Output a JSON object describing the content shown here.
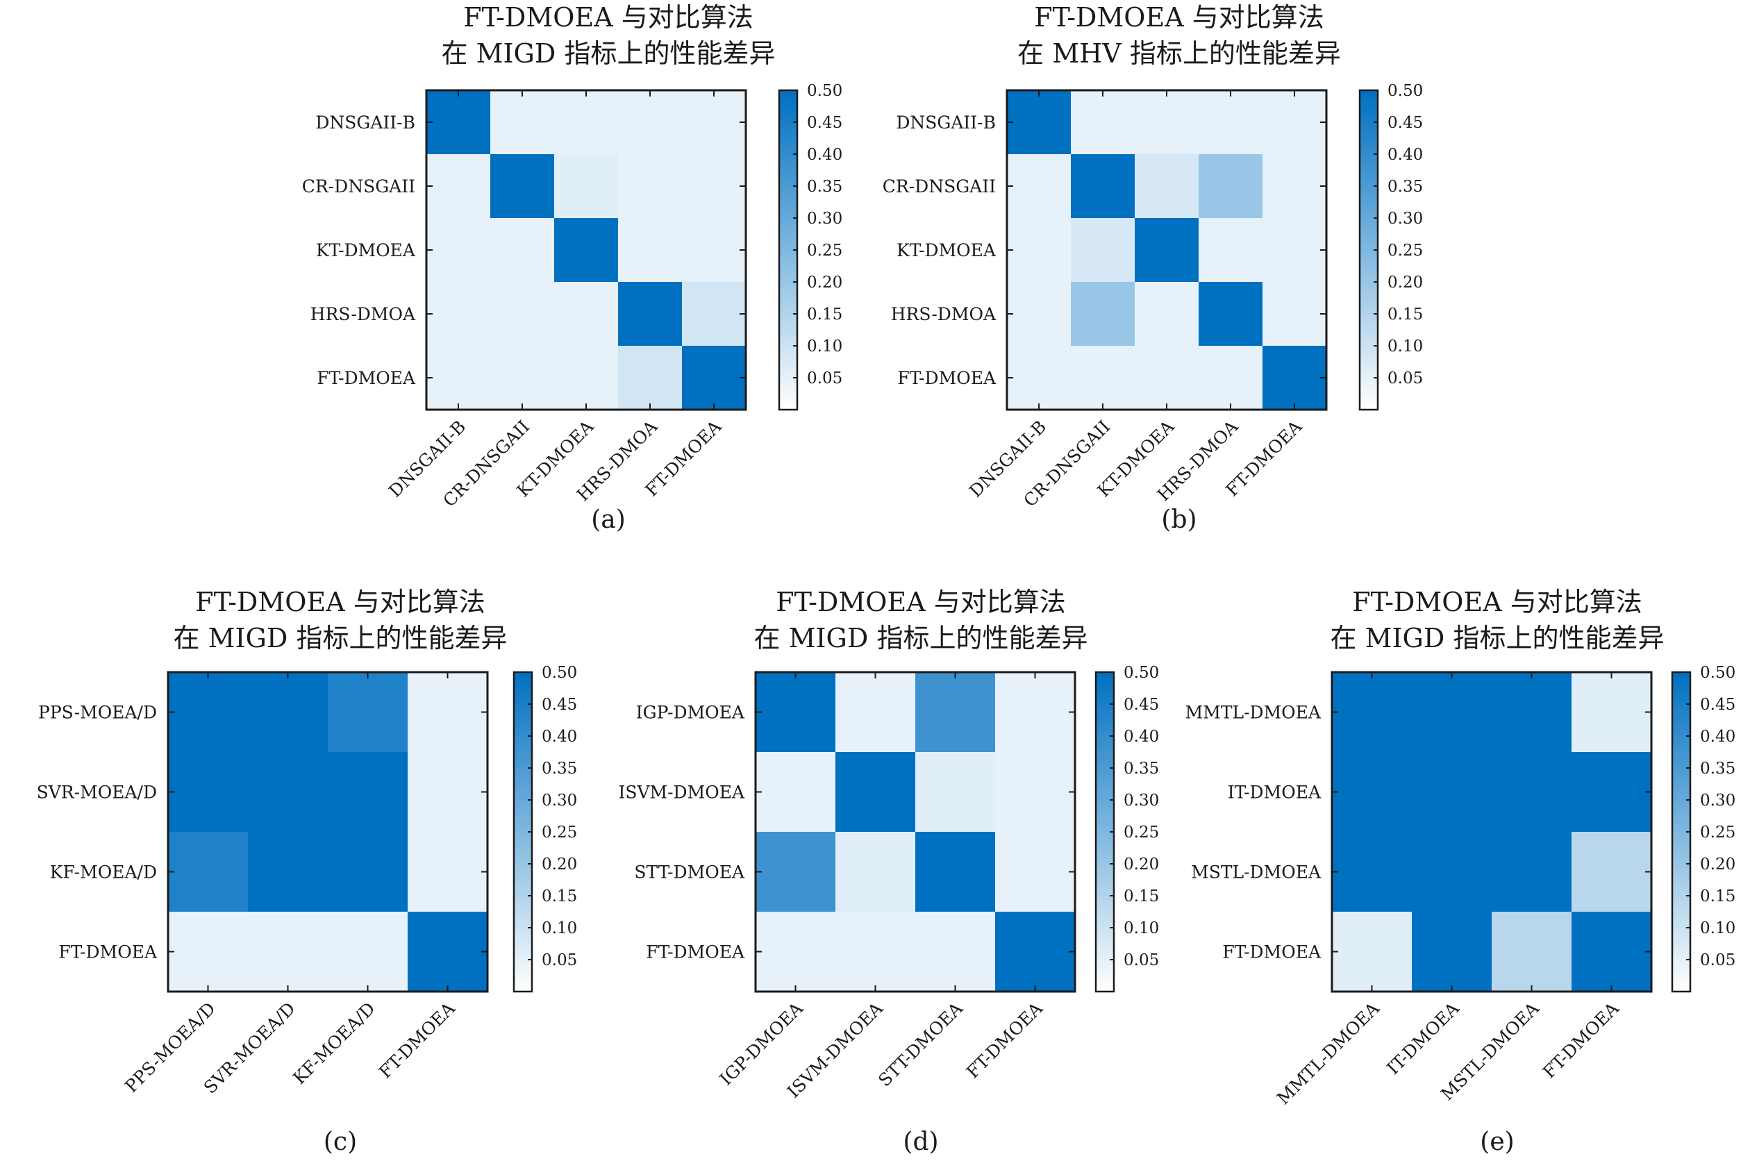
{
  "colormap": {
    "low": "#ffffff",
    "high": "#0070c0"
  },
  "colorbar": {
    "min": 0.0,
    "max": 0.5,
    "ticks": [
      "0.50",
      "0.45",
      "0.40",
      "0.35",
      "0.30",
      "0.25",
      "0.20",
      "0.15",
      "0.10",
      "0.05"
    ]
  },
  "chart_data": [
    {
      "type": "heatmap",
      "caption": "(a)",
      "title": "FT-DMOEA 与对比算法",
      "subtitle": "在 MIGD 指标上的性能差异",
      "labels": [
        "DNSGAII-B",
        "CR-DNSGAII",
        "KT-DMOEA",
        "HRS-DMOA",
        "FT-DMOEA"
      ],
      "values": [
        [
          0.5,
          0.05,
          0.05,
          0.05,
          0.05
        ],
        [
          0.05,
          0.5,
          0.06,
          0.05,
          0.05
        ],
        [
          0.05,
          0.05,
          0.5,
          0.05,
          0.05
        ],
        [
          0.05,
          0.05,
          0.05,
          0.5,
          0.09
        ],
        [
          0.05,
          0.05,
          0.05,
          0.09,
          0.5
        ]
      ]
    },
    {
      "type": "heatmap",
      "caption": "(b)",
      "title": "FT-DMOEA 与对比算法",
      "subtitle": "在 MHV 指标上的性能差异",
      "labels": [
        "DNSGAII-B",
        "CR-DNSGAII",
        "KT-DMOEA",
        "HRS-DMOA",
        "FT-DMOEA"
      ],
      "values": [
        [
          0.5,
          0.05,
          0.05,
          0.05,
          0.05
        ],
        [
          0.05,
          0.5,
          0.08,
          0.2,
          0.05
        ],
        [
          0.05,
          0.08,
          0.5,
          0.05,
          0.05
        ],
        [
          0.05,
          0.2,
          0.05,
          0.5,
          0.05
        ],
        [
          0.05,
          0.05,
          0.05,
          0.05,
          0.5
        ]
      ]
    },
    {
      "type": "heatmap",
      "caption": "(c)",
      "title": "FT-DMOEA 与对比算法",
      "subtitle": "在 MIGD 指标上的性能差异",
      "labels": [
        "PPS-MOEA/D",
        "SVR-MOEA/D",
        "KF-MOEA/D",
        "FT-DMOEA"
      ],
      "values": [
        [
          0.5,
          0.5,
          0.44,
          0.05
        ],
        [
          0.5,
          0.5,
          0.5,
          0.05
        ],
        [
          0.44,
          0.5,
          0.5,
          0.05
        ],
        [
          0.05,
          0.05,
          0.05,
          0.5
        ]
      ]
    },
    {
      "type": "heatmap",
      "caption": "(d)",
      "title": "FT-DMOEA 与对比算法",
      "subtitle": "在 MIGD 指标上的性能差异",
      "labels": [
        "IGP-DMOEA",
        "ISVM-DMOEA",
        "STT-DMOEA",
        "FT-DMOEA"
      ],
      "values": [
        [
          0.5,
          0.05,
          0.38,
          0.05
        ],
        [
          0.05,
          0.5,
          0.06,
          0.05
        ],
        [
          0.38,
          0.06,
          0.5,
          0.05
        ],
        [
          0.05,
          0.05,
          0.05,
          0.5
        ]
      ]
    },
    {
      "type": "heatmap",
      "caption": "(e)",
      "title": "FT-DMOEA 与对比算法",
      "subtitle": "在 MIGD 指标上的性能差异",
      "labels": [
        "MMTL-DMOEA",
        "IT-DMOEA",
        "MSTL-DMOEA",
        "FT-DMOEA"
      ],
      "values": [
        [
          0.5,
          0.5,
          0.5,
          0.06
        ],
        [
          0.5,
          0.5,
          0.5,
          0.5
        ],
        [
          0.5,
          0.5,
          0.5,
          0.14
        ],
        [
          0.06,
          0.5,
          0.14,
          0.5
        ]
      ]
    }
  ]
}
